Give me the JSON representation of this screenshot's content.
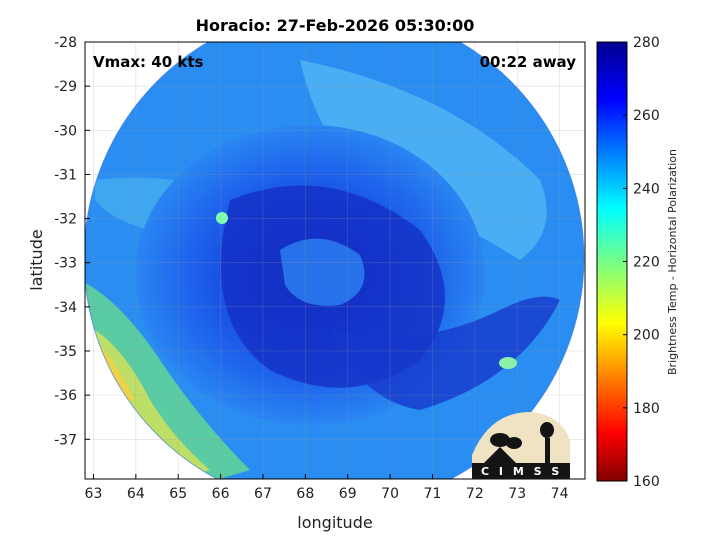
{
  "chart_data": {
    "type": "heatmap",
    "title": "Horacio: 27-Feb-2026 05:30:00",
    "annotations": {
      "vmax": "Vmax: 40 kts",
      "time_away": "00:22 away"
    },
    "xlabel": "longitude",
    "ylabel": "latitude",
    "xlim": [
      62.8,
      74.6
    ],
    "ylim": [
      -37.9,
      -28
    ],
    "x_ticks": [
      63,
      64,
      65,
      66,
      67,
      68,
      69,
      70,
      71,
      72,
      73,
      74
    ],
    "y_ticks": [
      -28,
      -29,
      -30,
      -31,
      -32,
      -33,
      -34,
      -35,
      -36,
      -37
    ],
    "colorbar": {
      "label": "Brightness Temp - Horizontal Polarization",
      "range": [
        160,
        280
      ],
      "ticks": [
        280,
        260,
        240,
        220,
        200,
        180,
        160
      ],
      "colormap": "jet"
    },
    "grid": true,
    "storm_center": {
      "lon": 68.4,
      "lat": -33.3
    },
    "swath_center": {
      "lon": 68.7,
      "lat": -33.4
    },
    "logo_text": "C I M S S"
  }
}
